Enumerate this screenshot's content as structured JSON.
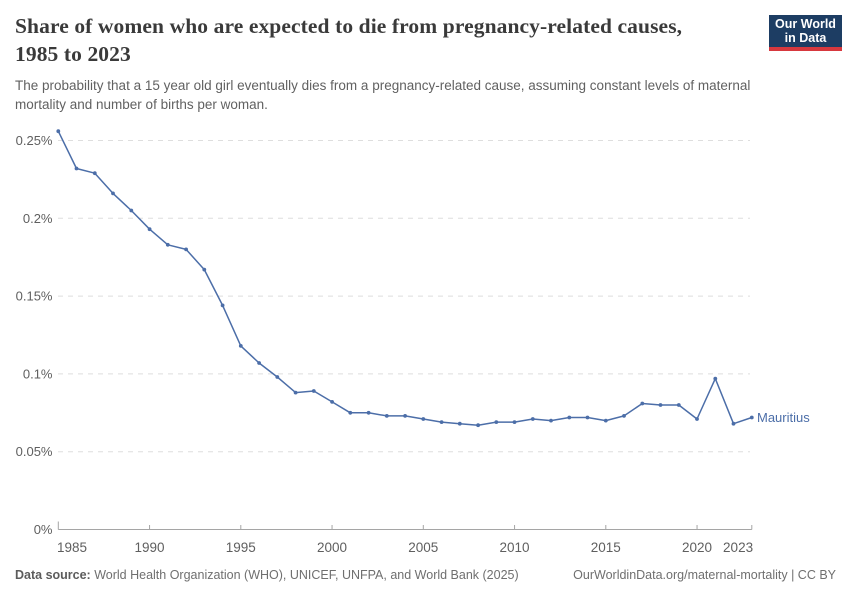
{
  "header": {
    "logo": {
      "line1": "Our World",
      "line2": "in Data"
    }
  },
  "chart_data": {
    "type": "line",
    "title": "Share of women who are expected to die from pregnancy-related causes, 1985 to 2023",
    "subtitle": "The probability that a 15 year old girl eventually dies from a pregnancy-related cause, assuming constant levels of maternal mortality and number of births per woman.",
    "x": [
      1985,
      1986,
      1987,
      1988,
      1989,
      1990,
      1991,
      1992,
      1993,
      1994,
      1995,
      1996,
      1997,
      1998,
      1999,
      2000,
      2001,
      2002,
      2003,
      2004,
      2005,
      2006,
      2007,
      2008,
      2009,
      2010,
      2011,
      2012,
      2013,
      2014,
      2015,
      2016,
      2017,
      2018,
      2019,
      2020,
      2021,
      2022,
      2023
    ],
    "series": [
      {
        "name": "Mauritius",
        "color": "#4c6ea8",
        "values": [
          0.256,
          0.232,
          0.229,
          0.216,
          0.205,
          0.193,
          0.183,
          0.18,
          0.167,
          0.144,
          0.118,
          0.107,
          0.098,
          0.088,
          0.089,
          0.082,
          0.075,
          0.075,
          0.073,
          0.073,
          0.071,
          0.069,
          0.068,
          0.067,
          0.069,
          0.069,
          0.071,
          0.07,
          0.072,
          0.072,
          0.07,
          0.073,
          0.081,
          0.08,
          0.08,
          0.071,
          0.097,
          0.068,
          0.072
        ]
      }
    ],
    "unit": "%",
    "xlabel": "",
    "ylabel": "",
    "xlim": [
      1985,
      2023
    ],
    "ylim": [
      0,
      0.26
    ],
    "x_ticks": [
      1985,
      1990,
      1995,
      2000,
      2005,
      2010,
      2015,
      2020,
      2023
    ],
    "x_tick_labels": [
      "1985",
      "1990",
      "1995",
      "2000",
      "2005",
      "2010",
      "2015",
      "2020",
      "2023"
    ],
    "y_ticks": [
      0,
      0.05,
      0.1,
      0.15,
      0.2,
      0.25
    ],
    "y_tick_labels": [
      "0%",
      "0.05%",
      "0.1%",
      "0.15%",
      "0.2%",
      "0.25%"
    ],
    "grid": "horizontal-dashed",
    "legend_position": "end-of-line-label"
  },
  "footer": {
    "source_label": "Data source:",
    "source_text": " World Health Organization (WHO), UNICEF, UNFPA, and World Bank (2025)",
    "link_text": "OurWorldinData.org/maternal-mortality | CC BY"
  },
  "colors": {
    "line": "#4c6ea8",
    "logo_background": "#1d3d63",
    "logo_red_bar": "#d7383e",
    "gridline": "#dedede",
    "axis": "#a5a5a5",
    "tick_text": "#5f5f5f",
    "title_text": "#3a3a3a",
    "subtitle_text": "#616161"
  }
}
